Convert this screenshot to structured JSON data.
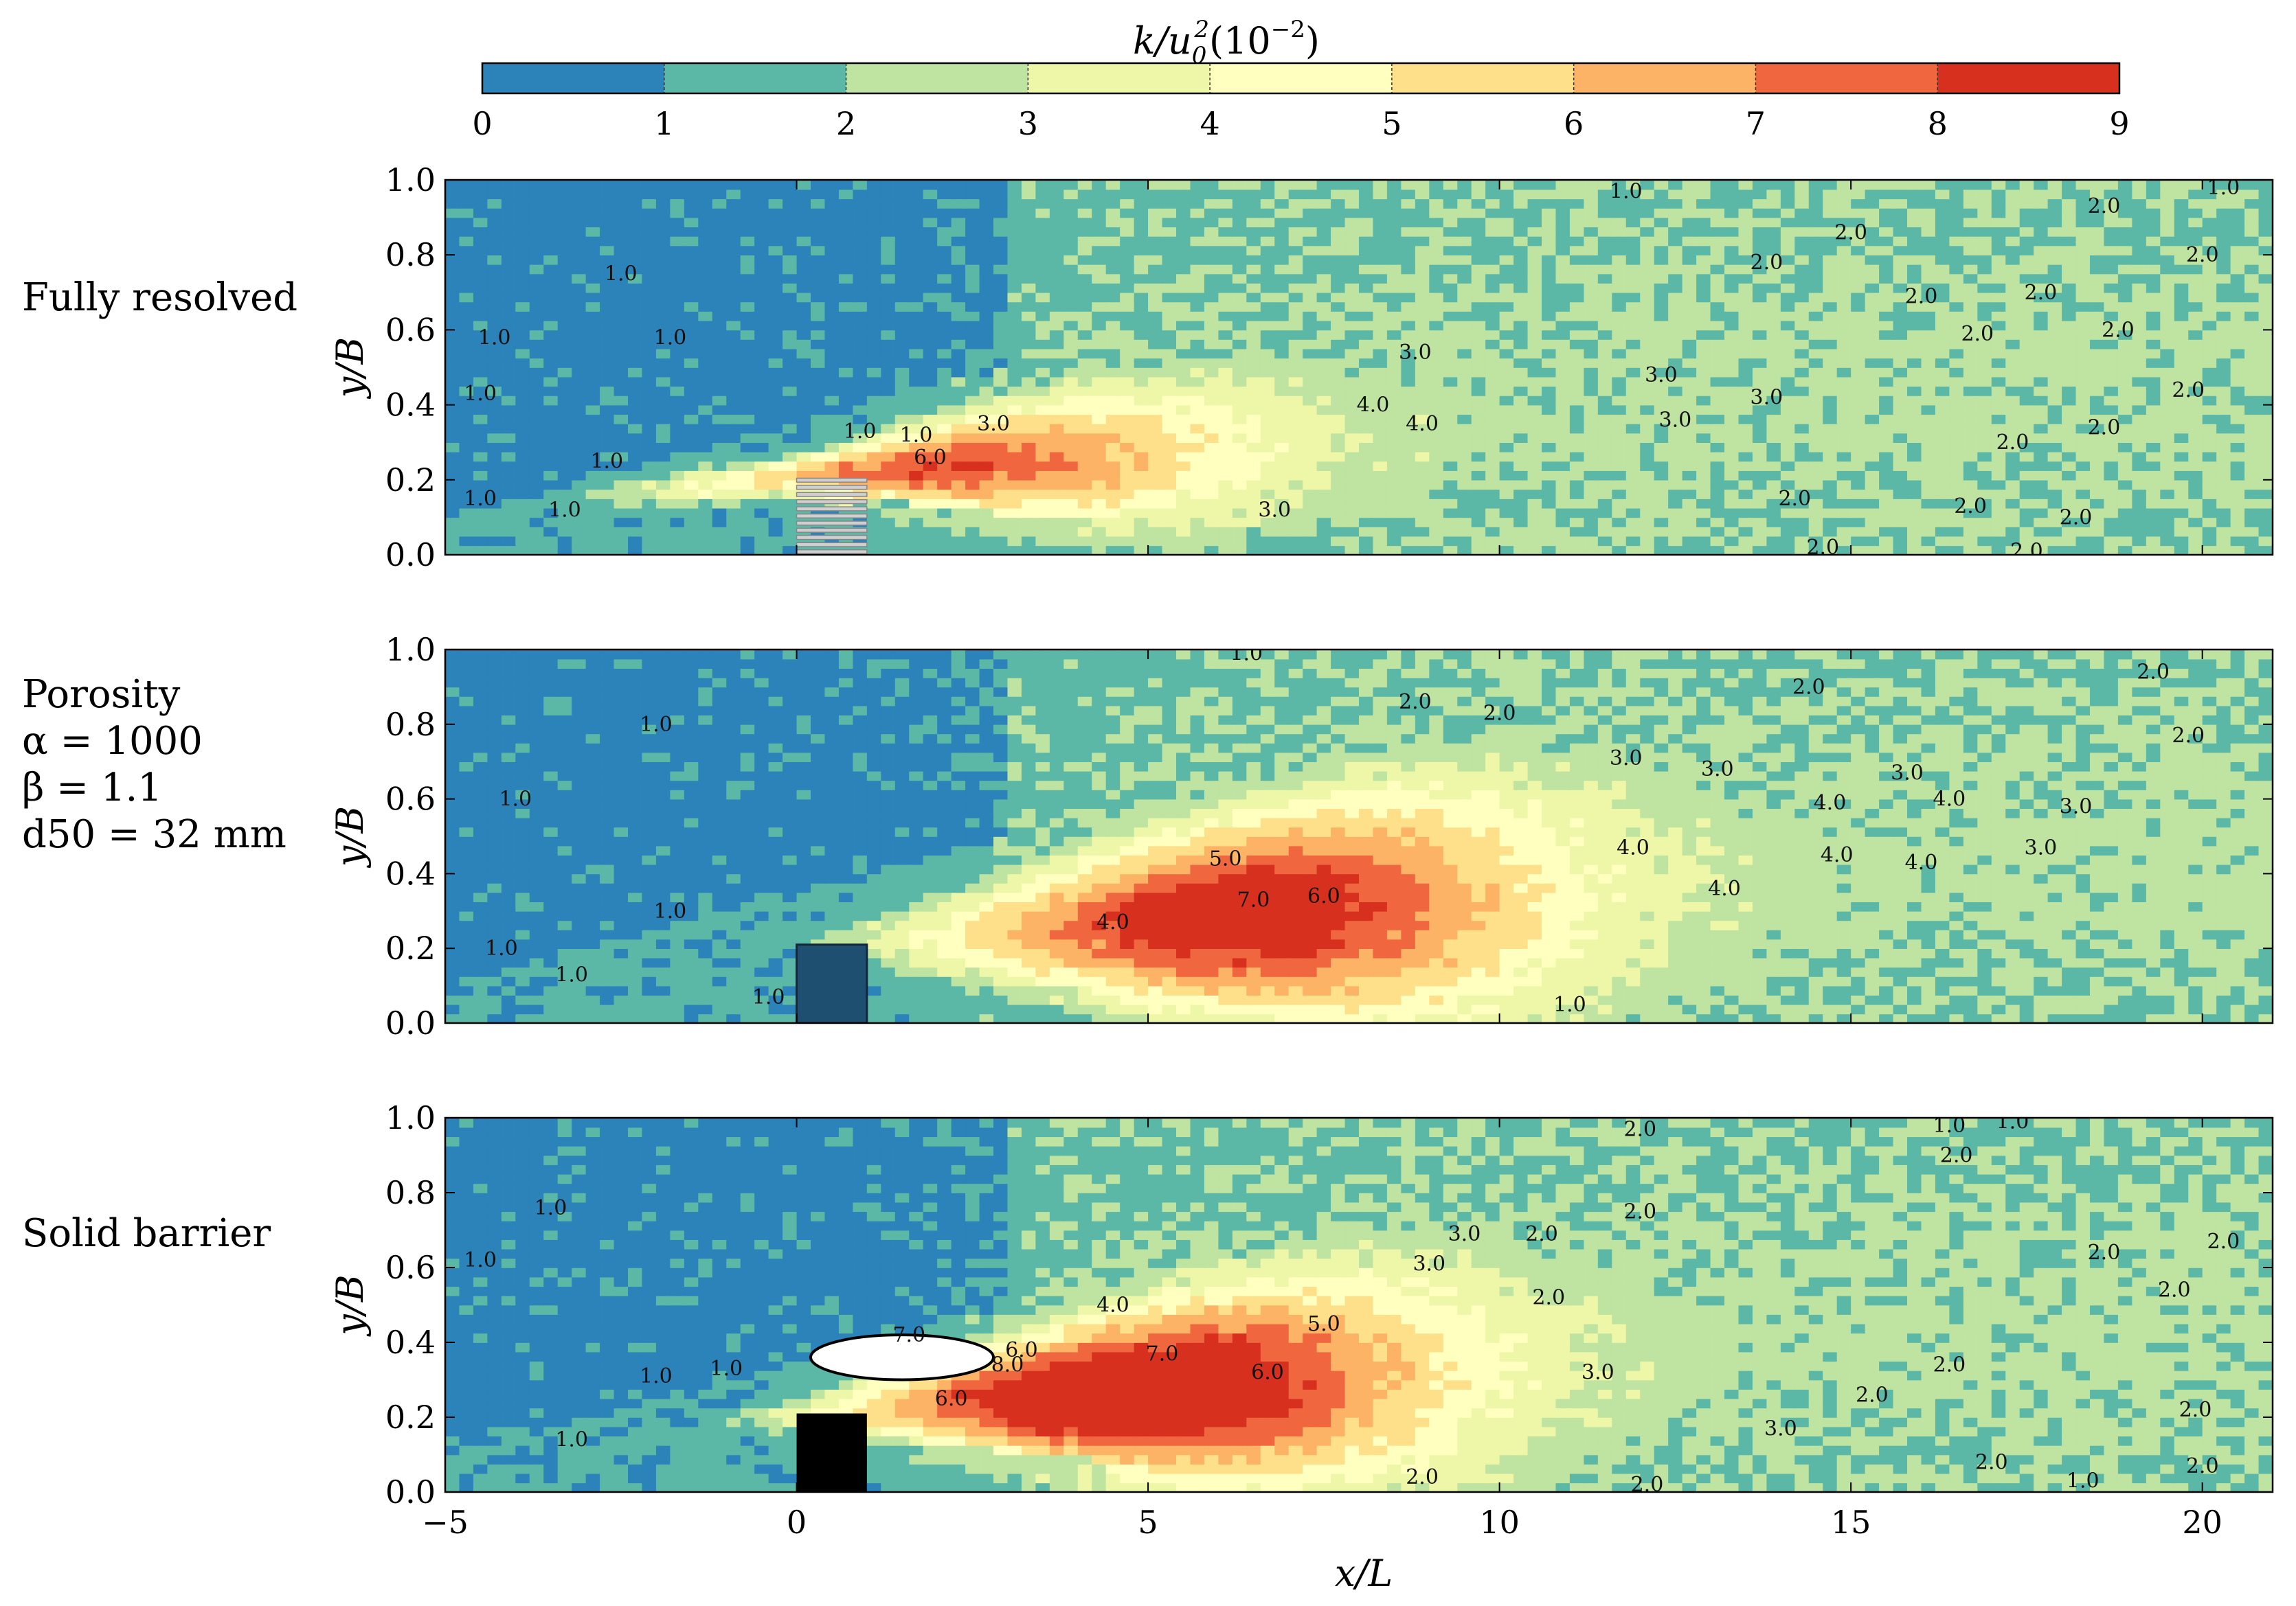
{
  "chart_data": {
    "type": "heatmap",
    "subtype": "filled-contour",
    "colorbar": {
      "title_main": "k/u",
      "title_sub": "0",
      "title_sup": "2",
      "title_tail": "(10",
      "title_exp": "−2",
      "title_close": ")",
      "levels": [
        0,
        1,
        2,
        3,
        4,
        5,
        6,
        7,
        8,
        9
      ],
      "tick_labels": [
        "0",
        "1",
        "2",
        "3",
        "4",
        "5",
        "6",
        "7",
        "8",
        "9"
      ],
      "colors": [
        "#2b83ba",
        "#5cb8a6",
        "#bfe3a0",
        "#eef7a8",
        "#ffffbf",
        "#fee08b",
        "#fdb365",
        "#f0663f",
        "#d7301f"
      ]
    },
    "xlabel": "x/L",
    "ylabel": "y/B",
    "xlim": [
      -5,
      21
    ],
    "ylim": [
      0,
      1
    ],
    "x_ticks": [
      -5,
      0,
      5,
      10,
      15,
      20
    ],
    "x_tick_labels": [
      "−5",
      "0",
      "5",
      "10",
      "15",
      "20"
    ],
    "y_ticks": [
      0.0,
      0.2,
      0.4,
      0.6,
      0.8,
      1.0
    ],
    "y_tick_labels": [
      "0.0",
      "0.2",
      "0.4",
      "0.6",
      "0.8",
      "1.0"
    ],
    "barrier": {
      "x_start": 0,
      "x_end": 1,
      "y_top": 0.21
    },
    "panels": [
      {
        "id": "fully-resolved",
        "label_lines": [
          "Fully resolved"
        ],
        "barrier_style": "grey-bars",
        "peak_x": 1.7,
        "peak_y": 0.27,
        "peak_k": 6.5,
        "contour_labels": [
          {
            "x": 11.8,
            "y": 0.97,
            "text": "1.0"
          },
          {
            "x": 20.3,
            "y": 0.98,
            "text": "1.0"
          },
          {
            "x": 18.6,
            "y": 0.93,
            "text": "2.0"
          },
          {
            "x": 15.0,
            "y": 0.86,
            "text": "2.0"
          },
          {
            "x": 13.8,
            "y": 0.78,
            "text": "2.0"
          },
          {
            "x": 20.0,
            "y": 0.8,
            "text": "2.0"
          },
          {
            "x": 17.7,
            "y": 0.7,
            "text": "2.0"
          },
          {
            "x": 18.8,
            "y": 0.6,
            "text": "2.0"
          },
          {
            "x": 19.8,
            "y": 0.44,
            "text": "2.0"
          },
          {
            "x": 16.8,
            "y": 0.59,
            "text": "2.0"
          },
          {
            "x": 18.6,
            "y": 0.34,
            "text": "2.0"
          },
          {
            "x": 16.0,
            "y": 0.69,
            "text": "2.0"
          },
          {
            "x": 17.3,
            "y": 0.3,
            "text": "2.0"
          },
          {
            "x": 14.2,
            "y": 0.15,
            "text": "2.0"
          },
          {
            "x": 16.7,
            "y": 0.13,
            "text": "2.0"
          },
          {
            "x": 18.2,
            "y": 0.1,
            "text": "2.0"
          },
          {
            "x": 14.6,
            "y": 0.02,
            "text": "2.0"
          },
          {
            "x": 17.5,
            "y": 0.01,
            "text": "2.0"
          },
          {
            "x": 8.8,
            "y": 0.54,
            "text": "3.0"
          },
          {
            "x": 12.3,
            "y": 0.48,
            "text": "3.0"
          },
          {
            "x": 13.8,
            "y": 0.42,
            "text": "3.0"
          },
          {
            "x": 12.5,
            "y": 0.36,
            "text": "3.0"
          },
          {
            "x": 2.8,
            "y": 0.35,
            "text": "3.0"
          },
          {
            "x": 6.8,
            "y": 0.12,
            "text": "3.0"
          },
          {
            "x": 8.2,
            "y": 0.4,
            "text": "4.0"
          },
          {
            "x": 8.9,
            "y": 0.35,
            "text": "4.0"
          },
          {
            "x": 1.7,
            "y": 0.32,
            "text": "1.0"
          },
          {
            "x": 1.9,
            "y": 0.26,
            "text": "6.0"
          },
          {
            "x": 0.9,
            "y": 0.33,
            "text": "1.0"
          },
          {
            "x": -2.5,
            "y": 0.75,
            "text": "1.0"
          },
          {
            "x": -4.3,
            "y": 0.58,
            "text": "1.0"
          },
          {
            "x": -1.8,
            "y": 0.58,
            "text": "1.0"
          },
          {
            "x": -4.5,
            "y": 0.43,
            "text": "1.0"
          },
          {
            "x": -2.7,
            "y": 0.25,
            "text": "1.0"
          },
          {
            "x": -4.5,
            "y": 0.15,
            "text": "1.0"
          },
          {
            "x": -3.3,
            "y": 0.12,
            "text": "1.0"
          }
        ]
      },
      {
        "id": "porosity",
        "label_lines": [
          "Porosity",
          "α = 1000",
          "β = 1.1",
          "d50 = 32 mm"
        ],
        "barrier_style": "dark-block",
        "peak_x": 6.2,
        "peak_y": 0.37,
        "peak_k": 7.1,
        "contour_labels": [
          {
            "x": 6.4,
            "y": 0.99,
            "text": "1.0"
          },
          {
            "x": 19.3,
            "y": 0.94,
            "text": "2.0"
          },
          {
            "x": 14.4,
            "y": 0.9,
            "text": "2.0"
          },
          {
            "x": 19.8,
            "y": 0.77,
            "text": "2.0"
          },
          {
            "x": 10.0,
            "y": 0.83,
            "text": "2.0"
          },
          {
            "x": 8.8,
            "y": 0.86,
            "text": "2.0"
          },
          {
            "x": 11.8,
            "y": 0.71,
            "text": "3.0"
          },
          {
            "x": 13.1,
            "y": 0.68,
            "text": "3.0"
          },
          {
            "x": 15.8,
            "y": 0.67,
            "text": "3.0"
          },
          {
            "x": 18.2,
            "y": 0.58,
            "text": "3.0"
          },
          {
            "x": 17.7,
            "y": 0.47,
            "text": "3.0"
          },
          {
            "x": 14.7,
            "y": 0.59,
            "text": "4.0"
          },
          {
            "x": 11.9,
            "y": 0.47,
            "text": "4.0"
          },
          {
            "x": 14.8,
            "y": 0.45,
            "text": "4.0"
          },
          {
            "x": 13.2,
            "y": 0.36,
            "text": "4.0"
          },
          {
            "x": 16.0,
            "y": 0.43,
            "text": "4.0"
          },
          {
            "x": 16.4,
            "y": 0.6,
            "text": "4.0"
          },
          {
            "x": 6.1,
            "y": 0.44,
            "text": "5.0"
          },
          {
            "x": 6.5,
            "y": 0.33,
            "text": "7.0"
          },
          {
            "x": 7.5,
            "y": 0.34,
            "text": "6.0"
          },
          {
            "x": 4.5,
            "y": 0.27,
            "text": "4.0"
          },
          {
            "x": -2.0,
            "y": 0.8,
            "text": "1.0"
          },
          {
            "x": -4.0,
            "y": 0.6,
            "text": "1.0"
          },
          {
            "x": -1.8,
            "y": 0.3,
            "text": "1.0"
          },
          {
            "x": -4.2,
            "y": 0.2,
            "text": "1.0"
          },
          {
            "x": -3.2,
            "y": 0.13,
            "text": "1.0"
          },
          {
            "x": -0.4,
            "y": 0.07,
            "text": "1.0"
          },
          {
            "x": 11.0,
            "y": 0.05,
            "text": "1.0"
          }
        ]
      },
      {
        "id": "solid-barrier",
        "label_lines": [
          "Solid barrier"
        ],
        "barrier_style": "black-block",
        "peak_x": 4.6,
        "peak_y": 0.38,
        "peak_k": 8.3,
        "contour_labels": [
          {
            "x": 12.0,
            "y": 0.97,
            "text": "2.0"
          },
          {
            "x": 16.4,
            "y": 0.98,
            "text": "1.0"
          },
          {
            "x": 17.3,
            "y": 0.99,
            "text": "1.0"
          },
          {
            "x": 16.5,
            "y": 0.9,
            "text": "2.0"
          },
          {
            "x": 12.0,
            "y": 0.75,
            "text": "2.0"
          },
          {
            "x": 10.6,
            "y": 0.69,
            "text": "2.0"
          },
          {
            "x": 18.6,
            "y": 0.64,
            "text": "2.0"
          },
          {
            "x": 20.3,
            "y": 0.67,
            "text": "2.0"
          },
          {
            "x": 19.6,
            "y": 0.54,
            "text": "2.0"
          },
          {
            "x": 10.7,
            "y": 0.52,
            "text": "2.0"
          },
          {
            "x": 9.5,
            "y": 0.69,
            "text": "3.0"
          },
          {
            "x": 9.0,
            "y": 0.61,
            "text": "3.0"
          },
          {
            "x": 11.4,
            "y": 0.32,
            "text": "3.0"
          },
          {
            "x": 14.0,
            "y": 0.17,
            "text": "3.0"
          },
          {
            "x": 4.5,
            "y": 0.5,
            "text": "4.0"
          },
          {
            "x": 7.5,
            "y": 0.45,
            "text": "5.0"
          },
          {
            "x": 5.2,
            "y": 0.37,
            "text": "7.0"
          },
          {
            "x": 6.7,
            "y": 0.32,
            "text": "6.0"
          },
          {
            "x": 3.0,
            "y": 0.34,
            "text": "8.0"
          },
          {
            "x": 3.2,
            "y": 0.38,
            "text": "6.0"
          },
          {
            "x": 1.6,
            "y": 0.42,
            "text": "7.0"
          },
          {
            "x": 16.4,
            "y": 0.34,
            "text": "2.0"
          },
          {
            "x": 19.9,
            "y": 0.22,
            "text": "2.0"
          },
          {
            "x": 17.0,
            "y": 0.08,
            "text": "2.0"
          },
          {
            "x": 20.0,
            "y": 0.07,
            "text": "2.0"
          },
          {
            "x": 12.1,
            "y": 0.02,
            "text": "2.0"
          },
          {
            "x": 8.9,
            "y": 0.04,
            "text": "2.0"
          },
          {
            "x": 18.3,
            "y": 0.03,
            "text": "1.0"
          },
          {
            "x": 15.3,
            "y": 0.26,
            "text": "2.0"
          },
          {
            "x": 2.2,
            "y": 0.25,
            "text": "6.0"
          },
          {
            "x": -3.5,
            "y": 0.76,
            "text": "1.0"
          },
          {
            "x": -4.5,
            "y": 0.62,
            "text": "1.0"
          },
          {
            "x": -2.0,
            "y": 0.31,
            "text": "1.0"
          },
          {
            "x": -1.0,
            "y": 0.33,
            "text": "1.0"
          },
          {
            "x": -3.2,
            "y": 0.14,
            "text": "1.0"
          }
        ]
      }
    ]
  }
}
